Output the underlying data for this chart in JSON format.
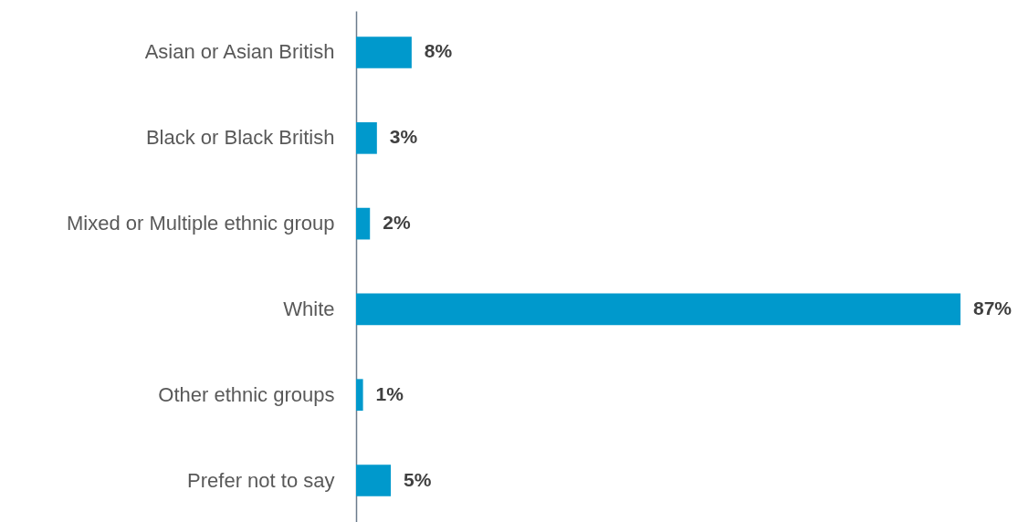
{
  "chart_data": {
    "type": "bar",
    "orientation": "horizontal",
    "categories": [
      "Asian  or Asian British",
      "Black or Black British",
      "Mixed or Multiple ethnic group",
      "White",
      "Other ethnic groups",
      "Prefer not to say"
    ],
    "values": [
      8,
      3,
      2,
      87,
      1,
      5
    ],
    "value_labels": [
      "8%",
      "3%",
      "2%",
      "87%",
      "1%",
      "5%"
    ],
    "color": "#0099cc",
    "grid": false
  }
}
